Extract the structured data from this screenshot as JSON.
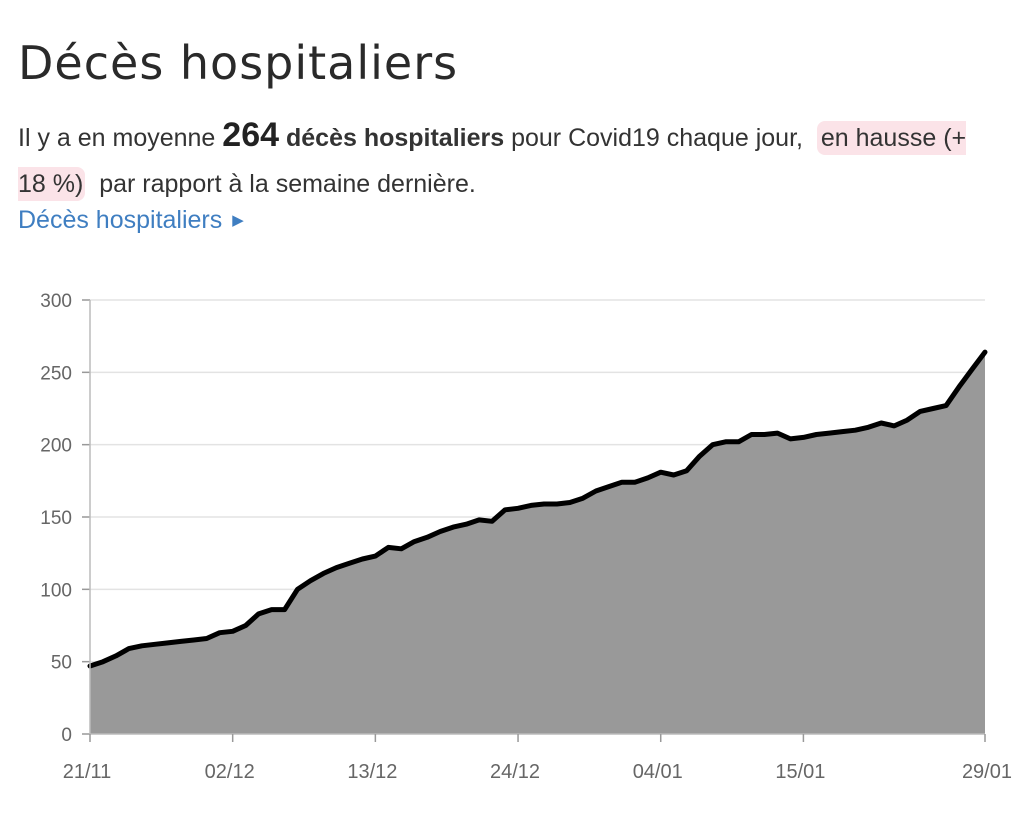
{
  "header": {
    "title": "Décès hospitaliers"
  },
  "summary": {
    "prefix": "Il y a en moyenne",
    "value": "264",
    "metric": "décès hospitaliers",
    "middle": "pour Covid19 chaque jour,",
    "trend": "en hausse (+ 18 %)",
    "suffix": "par rapport à la semaine dernière."
  },
  "link": {
    "label": "Décès hospitaliers",
    "arrow_icon": "triangle-right-icon"
  },
  "colors": {
    "area_fill": "#999999",
    "line": "#000000",
    "link": "#3f7ec1",
    "trend_highlight": "#fbe3e8",
    "grid": "#e3e3e3"
  },
  "chart_data": {
    "type": "area",
    "ylim": [
      0,
      300
    ],
    "yticks": [
      0,
      50,
      100,
      150,
      200,
      250,
      300
    ],
    "xticks": [
      "21/11",
      "02/12",
      "13/12",
      "24/12",
      "04/01",
      "15/01",
      "29/01"
    ],
    "grid": true,
    "legend": "none",
    "x": [
      "21/11",
      "22/11",
      "23/11",
      "24/11",
      "25/11",
      "26/11",
      "27/11",
      "28/11",
      "29/11",
      "30/11",
      "01/12",
      "02/12",
      "03/12",
      "04/12",
      "05/12",
      "06/12",
      "07/12",
      "08/12",
      "09/12",
      "10/12",
      "11/12",
      "12/12",
      "13/12",
      "14/12",
      "15/12",
      "16/12",
      "17/12",
      "18/12",
      "19/12",
      "20/12",
      "21/12",
      "22/12",
      "23/12",
      "24/12",
      "25/12",
      "26/12",
      "27/12",
      "28/12",
      "29/12",
      "30/12",
      "31/12",
      "01/01",
      "02/01",
      "03/01",
      "04/01",
      "05/01",
      "06/01",
      "07/01",
      "08/01",
      "09/01",
      "10/01",
      "11/01",
      "12/01",
      "13/01",
      "14/01",
      "15/01",
      "16/01",
      "17/01",
      "18/01",
      "19/01",
      "20/01",
      "21/01",
      "22/01",
      "23/01",
      "24/01",
      "25/01",
      "26/01",
      "27/01",
      "28/01",
      "29/01"
    ],
    "values": [
      47,
      50,
      54,
      59,
      61,
      62,
      63,
      64,
      65,
      66,
      70,
      71,
      75,
      83,
      86,
      86,
      100,
      106,
      111,
      115,
      118,
      121,
      123,
      129,
      128,
      133,
      136,
      140,
      143,
      145,
      148,
      147,
      155,
      156,
      158,
      159,
      159,
      160,
      163,
      168,
      171,
      174,
      174,
      177,
      181,
      179,
      182,
      192,
      200,
      202,
      202,
      207,
      207,
      208,
      204,
      205,
      207,
      208,
      209,
      210,
      212,
      215,
      213,
      217,
      223,
      225,
      227,
      240,
      252,
      264
    ]
  }
}
